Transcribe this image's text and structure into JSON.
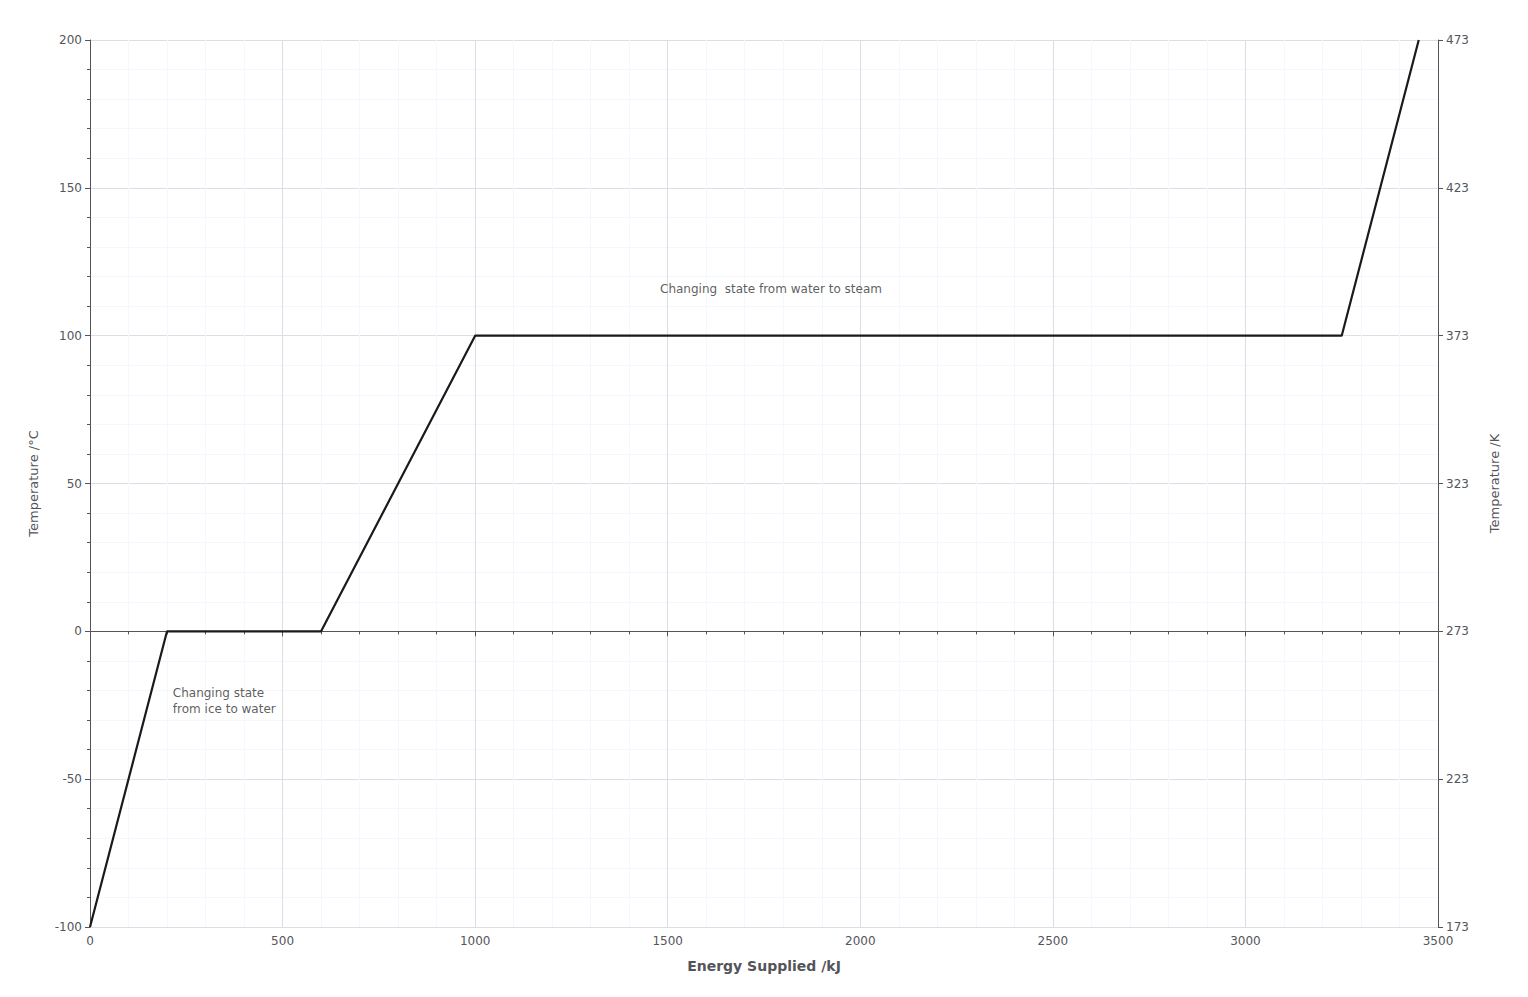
{
  "chart_data": {
    "type": "line",
    "xlabel": "Energy Supplied /kJ",
    "ylabel": "Temperature /°C",
    "y2label": "Temperature /K",
    "x": [
      0,
      200,
      600,
      1000,
      3250,
      3450
    ],
    "series": [
      {
        "values": [
          -100,
          0,
          0,
          100,
          100,
          200
        ],
        "color": "#1a1a1a"
      }
    ],
    "xlim": [
      0,
      3500
    ],
    "ylim": [
      -100,
      200
    ],
    "y2lim": [
      173,
      473
    ],
    "xticks": [
      0,
      500,
      1000,
      1500,
      2000,
      2500,
      3000,
      3500
    ],
    "yticks": [
      -100,
      -50,
      0,
      50,
      100,
      150,
      200
    ],
    "y2ticks": [
      173,
      223,
      273,
      323,
      373,
      423,
      473
    ],
    "grid": true,
    "annotations": [
      {
        "text": "Changing  state from water to steam",
        "x": 1480,
        "y": 113
      },
      {
        "text": "Changing state\nfrom ice to water",
        "x": 215,
        "y": -18
      }
    ]
  }
}
